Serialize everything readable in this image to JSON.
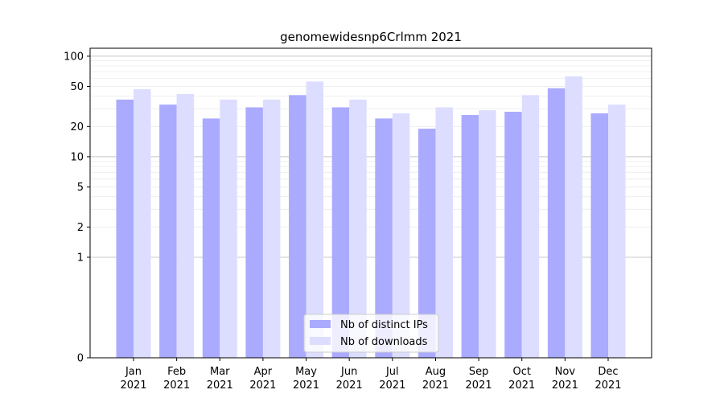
{
  "chart_data": {
    "type": "bar",
    "title": "genomewidesnp6Crlmm 2021",
    "xlabel": "",
    "ylabel": "",
    "y_scale": "symlog",
    "ylim": [
      0,
      120
    ],
    "y_ticks": [
      0,
      1,
      2,
      5,
      10,
      20,
      50,
      100
    ],
    "grid": "horizontal",
    "legend_position": "bottom-center",
    "categories": [
      "Jan\n2021",
      "Feb\n2021",
      "Mar\n2021",
      "Apr\n2021",
      "May\n2021",
      "Jun\n2021",
      "Jul\n2021",
      "Aug\n2021",
      "Sep\n2021",
      "Oct\n2021",
      "Nov\n2021",
      "Dec\n2021"
    ],
    "series": [
      {
        "name": "Nb of distinct IPs",
        "color": "#aaaaff",
        "values": [
          37,
          33,
          24,
          31,
          41,
          31,
          24,
          19,
          26,
          28,
          48,
          27
        ]
      },
      {
        "name": "Nb of downloads",
        "color": "#ddddff",
        "values": [
          47,
          42,
          37,
          37,
          56,
          37,
          27,
          31,
          29,
          41,
          63,
          33
        ]
      }
    ]
  }
}
